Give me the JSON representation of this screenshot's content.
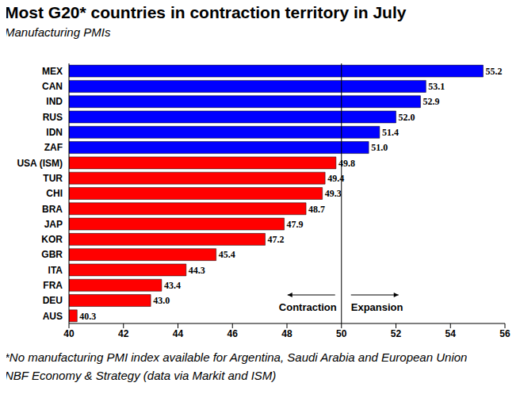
{
  "chart_data": {
    "type": "bar",
    "orientation": "horizontal",
    "title": "Most G20* countries in contraction territory in July",
    "subtitle": "Manufacturing PMIs",
    "categories": [
      "MEX",
      "CAN",
      "IND",
      "RUS",
      "IDN",
      "ZAF",
      "USA (ISM)",
      "TUR",
      "CHI",
      "BRA",
      "JAP",
      "KOR",
      "GBR",
      "ITA",
      "FRA",
      "DEU",
      "AUS"
    ],
    "values": [
      55.2,
      53.1,
      52.9,
      52.0,
      51.4,
      51.0,
      49.8,
      49.4,
      49.3,
      48.7,
      47.9,
      47.2,
      45.4,
      44.3,
      43.4,
      43.0,
      40.3
    ],
    "value_labels": [
      "55.2",
      "53.1",
      "52.9",
      "52.0",
      "51.4",
      "51.0",
      "49.8",
      "49.4",
      "49.3",
      "48.7",
      "47.9",
      "47.2",
      "45.4",
      "44.3",
      "43.4",
      "43.0",
      "40.3"
    ],
    "colors": [
      "#0000FF",
      "#0000FF",
      "#0000FF",
      "#0000FF",
      "#0000FF",
      "#0000FF",
      "#FF0000",
      "#FF0000",
      "#FF0000",
      "#FF0000",
      "#FF0000",
      "#FF0000",
      "#FF0000",
      "#FF0000",
      "#FF0000",
      "#FF0000",
      "#FF0000"
    ],
    "xlim": [
      40,
      56
    ],
    "xticks": [
      40,
      42,
      44,
      46,
      48,
      50,
      52,
      54,
      56
    ],
    "data_labels": true,
    "grid": false,
    "reference_line": 50,
    "annotations": [
      "Contraction",
      "Expansion"
    ],
    "footnotes": [
      "*No manufacturing PMI index available for Argentina, Saudi Arabia and European Union",
      "NBF Economy & Strategy (data via Markit and ISM)"
    ]
  }
}
